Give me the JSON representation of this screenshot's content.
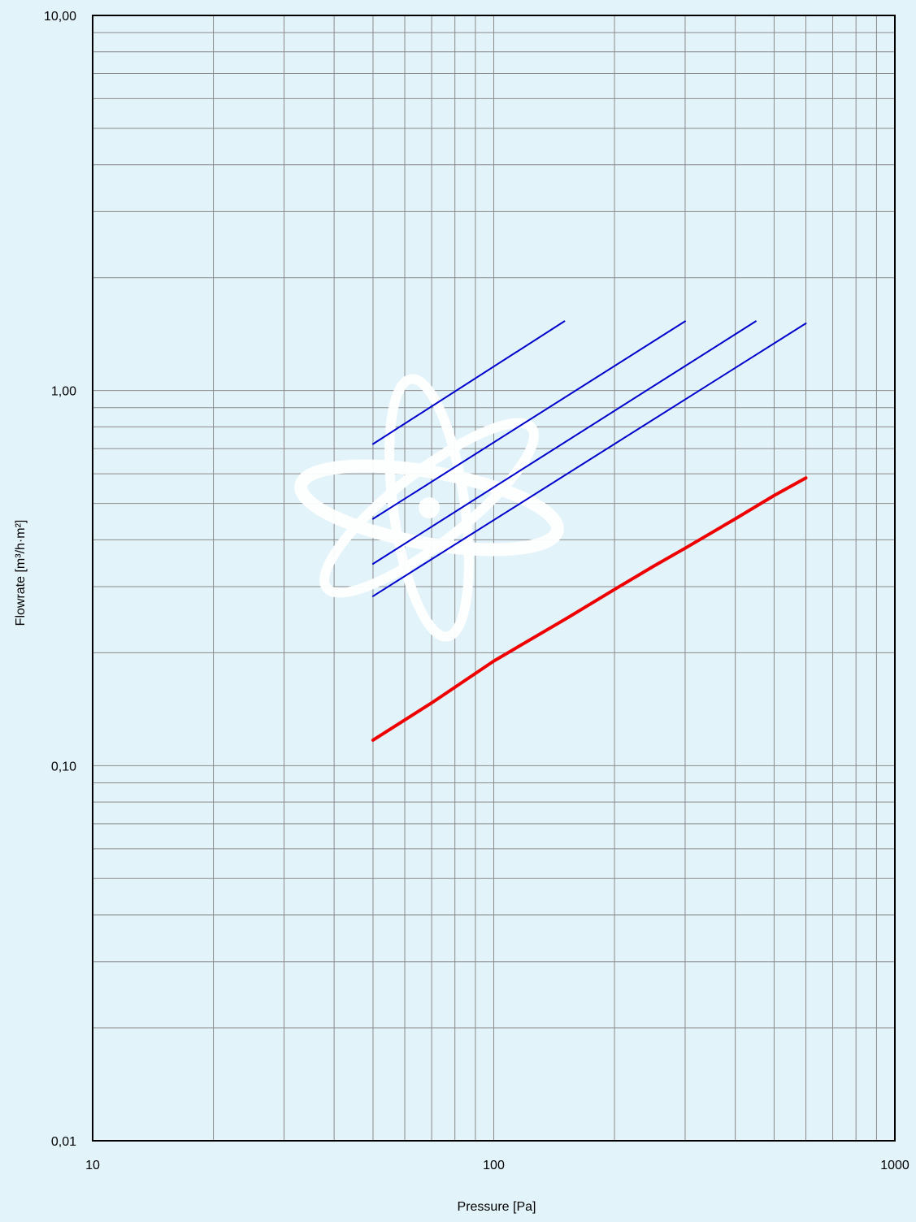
{
  "chart_data": {
    "type": "line",
    "title": "",
    "xlabel": "Pressure [Pa]",
    "ylabel": "Flowrate  [m³/h·m²]",
    "xscale": "log",
    "yscale": "log",
    "xlim": [
      10,
      1000
    ],
    "ylim": [
      0.01,
      10
    ],
    "grid": true,
    "legend": "none",
    "x_ticks": [
      {
        "value": 10,
        "label": "10"
      },
      {
        "value": 100,
        "label": "100"
      },
      {
        "value": 1000,
        "label": "1000"
      }
    ],
    "y_ticks": [
      {
        "value": 0.01,
        "label": "0,01"
      },
      {
        "value": 0.1,
        "label": "0,10"
      },
      {
        "value": 1,
        "label": "1,00"
      },
      {
        "value": 10,
        "label": "10,00"
      }
    ],
    "series": [
      {
        "color": "#0000cc",
        "width": 2,
        "points": [
          [
            50,
            0.72
          ],
          [
            150,
            1.53
          ]
        ]
      },
      {
        "color": "#0000cc",
        "width": 2,
        "points": [
          [
            50,
            0.455
          ],
          [
            300,
            1.53
          ]
        ]
      },
      {
        "color": "#0000cc",
        "width": 2,
        "points": [
          [
            50,
            0.345
          ],
          [
            450,
            1.53
          ]
        ]
      },
      {
        "color": "#0000cc",
        "width": 2,
        "points": [
          [
            50,
            0.283
          ],
          [
            600,
            1.51
          ]
        ]
      },
      {
        "color": "#ee0000",
        "width": 4,
        "points": [
          [
            50,
            0.117
          ],
          [
            70,
            0.147
          ],
          [
            100,
            0.19
          ],
          [
            150,
            0.245
          ],
          [
            200,
            0.295
          ],
          [
            250,
            0.34
          ],
          [
            300,
            0.38
          ],
          [
            400,
            0.455
          ],
          [
            500,
            0.525
          ],
          [
            600,
            0.585
          ]
        ]
      }
    ]
  },
  "watermark": {
    "icon": "atom-icon",
    "color": "#ffffff"
  },
  "colors": {
    "background": "#e3f3fa",
    "grid": "#8a8a8a",
    "frame": "#000000"
  }
}
